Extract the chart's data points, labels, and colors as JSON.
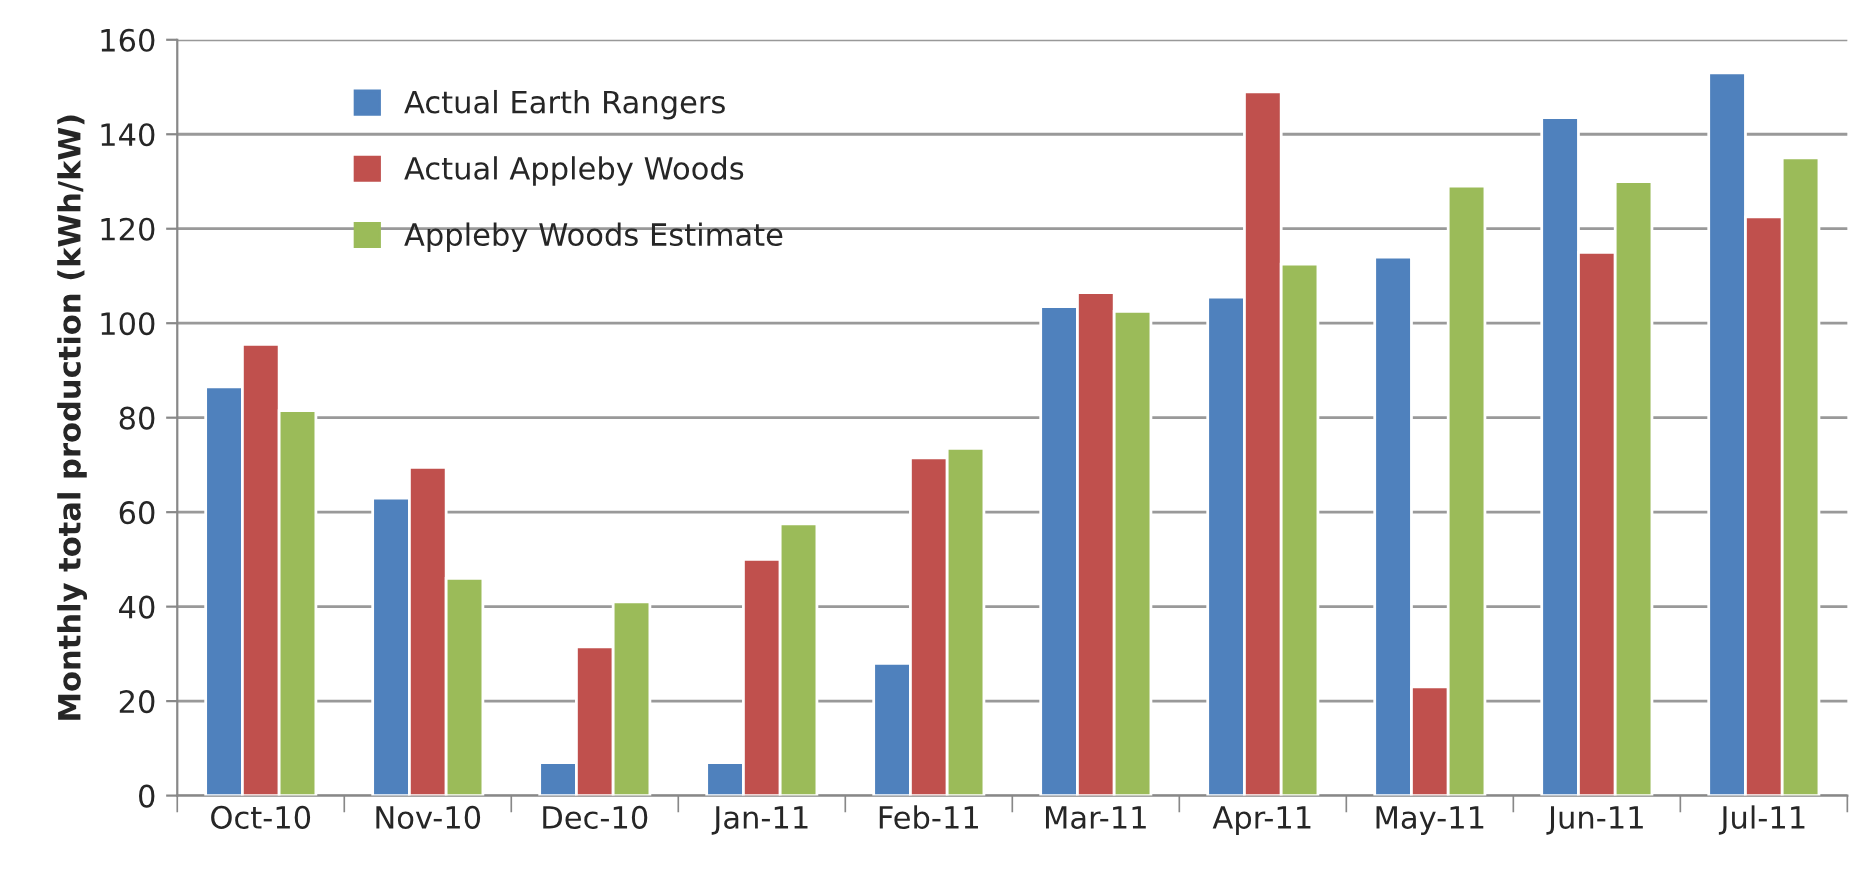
{
  "chart_data": {
    "type": "bar",
    "ylabel": "Monthly total production (kWh/kW)",
    "categories": [
      "Oct-10",
      "Nov-10",
      "Dec-10",
      "Jan-11",
      "Feb-11",
      "Mar-11",
      "Apr-11",
      "May-11",
      "Jun-11",
      "Jul-11"
    ],
    "series": [
      {
        "name": "Actual Earth Rangers",
        "color": "#4f81bd",
        "values": [
          86.5,
          63,
          7,
          7,
          28,
          103.5,
          105.5,
          114,
          143.5,
          153
        ]
      },
      {
        "name": "Actual Appleby Woods",
        "color": "#c0504d",
        "values": [
          95.5,
          69.5,
          31.5,
          50,
          71.5,
          106.5,
          149,
          23,
          115,
          122.5
        ]
      },
      {
        "name": "Appleby Woods Estimate",
        "color": "#9bbb59",
        "values": [
          81.5,
          46,
          41,
          57.5,
          73.5,
          102.5,
          112.5,
          129,
          130,
          135
        ]
      }
    ],
    "ylim": [
      0,
      160
    ],
    "yticks": [
      0,
      20,
      40,
      60,
      80,
      100,
      120,
      140,
      160
    ],
    "grid": "y",
    "legend": "top left"
  }
}
